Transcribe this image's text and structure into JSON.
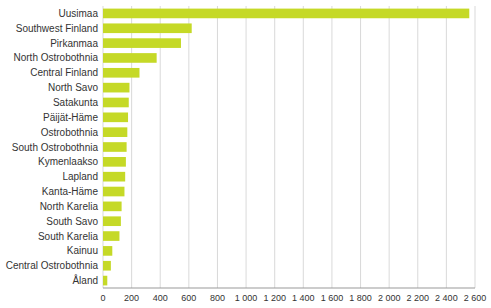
{
  "chart_data": {
    "type": "bar",
    "orientation": "horizontal",
    "categories": [
      "Uusimaa",
      "Southwest Finland",
      "Pirkanmaa",
      "North Ostrobothnia",
      "Central Finland",
      "North Savo",
      "Satakunta",
      "Päijät-Häme",
      "Ostrobothnia",
      "South Ostrobothnia",
      "Kymenlaakso",
      "Lapland",
      "Kanta-Häme",
      "North Karelia",
      "South Savo",
      "South Karelia",
      "Kainuu",
      "Central Ostrobothnia",
      "Åland"
    ],
    "values": [
      2560,
      620,
      545,
      375,
      255,
      185,
      180,
      175,
      170,
      165,
      160,
      155,
      150,
      130,
      125,
      115,
      65,
      55,
      30
    ],
    "color": "#c5d927",
    "xlim": [
      0,
      2600
    ],
    "xticks": [
      0,
      200,
      400,
      600,
      800,
      {
        "value": 1000,
        "label": "1 000"
      },
      {
        "value": 1200,
        "label": "1 200"
      },
      {
        "value": 1400,
        "label": "1 400"
      },
      {
        "value": 1600,
        "label": "1 600"
      },
      {
        "value": 1800,
        "label": "1 800"
      },
      {
        "value": 2000,
        "label": "2 000"
      },
      {
        "value": 2200,
        "label": "2 200"
      },
      {
        "value": 2400,
        "label": "2 400"
      },
      {
        "value": 2600,
        "label": "2 600"
      }
    ],
    "grid": true
  }
}
